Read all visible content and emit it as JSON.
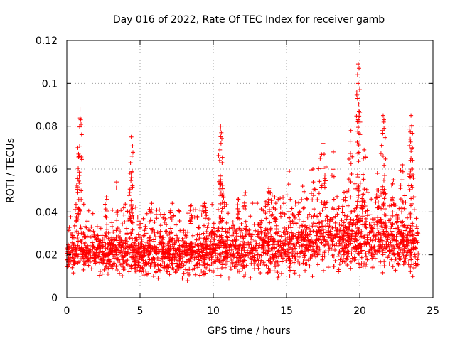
{
  "chart_data": {
    "type": "scatter",
    "title": "Day 016 of 2022, Rate Of TEC Index for receiver gamb",
    "xlabel": "GPS time / hours",
    "ylabel": "ROTI / TECUs",
    "xlim": [
      0,
      25
    ],
    "ylim": [
      0,
      0.12
    ],
    "xticks": [
      0,
      5,
      10,
      15,
      20,
      25
    ],
    "xtick_labels": [
      "0",
      "5",
      "10",
      "15",
      "20",
      "25"
    ],
    "yticks": [
      0,
      0.02,
      0.04,
      0.06,
      0.08,
      0.1,
      0.12
    ],
    "ytick_labels": [
      "0",
      "0.02",
      "0.04",
      "0.06",
      "0.08",
      "0.1",
      "0.12"
    ],
    "grid": true,
    "marker": "+",
    "marker_color": "#ff0000",
    "data_x_range": [
      0,
      24
    ],
    "bulk_range_by_hour": [
      [
        0,
        0.008,
        0.028
      ],
      [
        1,
        0.008,
        0.032
      ],
      [
        2,
        0.007,
        0.03
      ],
      [
        3,
        0.007,
        0.03
      ],
      [
        4,
        0.006,
        0.032
      ],
      [
        5,
        0.006,
        0.03
      ],
      [
        6,
        0.006,
        0.03
      ],
      [
        7,
        0.007,
        0.03
      ],
      [
        8,
        0.007,
        0.028
      ],
      [
        9,
        0.007,
        0.03
      ],
      [
        10,
        0.007,
        0.032
      ],
      [
        11,
        0.007,
        0.032
      ],
      [
        12,
        0.007,
        0.032
      ],
      [
        13,
        0.007,
        0.034
      ],
      [
        14,
        0.007,
        0.034
      ],
      [
        15,
        0.006,
        0.036
      ],
      [
        16,
        0.008,
        0.036
      ],
      [
        17,
        0.008,
        0.04
      ],
      [
        18,
        0.008,
        0.04
      ],
      [
        19,
        0.008,
        0.038
      ],
      [
        20,
        0.008,
        0.04
      ],
      [
        21,
        0.008,
        0.04
      ],
      [
        22,
        0.008,
        0.038
      ],
      [
        23,
        0.007,
        0.038
      ],
      [
        24,
        0.005,
        0.03
      ]
    ],
    "spikes": [
      {
        "x": 0.9,
        "y": 0.088
      },
      {
        "x": 0.95,
        "y": 0.083
      },
      {
        "x": 0.75,
        "y": 0.07
      },
      {
        "x": 0.8,
        "y": 0.067
      },
      {
        "x": 0.85,
        "y": 0.057
      },
      {
        "x": 0.7,
        "y": 0.042
      },
      {
        "x": 4.4,
        "y": 0.075
      },
      {
        "x": 4.45,
        "y": 0.066
      },
      {
        "x": 4.35,
        "y": 0.063
      },
      {
        "x": 4.4,
        "y": 0.056
      },
      {
        "x": 4.3,
        "y": 0.049
      },
      {
        "x": 3.4,
        "y": 0.054
      },
      {
        "x": 10.5,
        "y": 0.08
      },
      {
        "x": 10.55,
        "y": 0.077
      },
      {
        "x": 10.45,
        "y": 0.069
      },
      {
        "x": 10.6,
        "y": 0.063
      },
      {
        "x": 10.5,
        "y": 0.055
      },
      {
        "x": 10.7,
        "y": 0.047
      },
      {
        "x": 17.3,
        "y": 0.065
      },
      {
        "x": 17.5,
        "y": 0.072
      },
      {
        "x": 17.7,
        "y": 0.061
      },
      {
        "x": 18.2,
        "y": 0.068
      },
      {
        "x": 16.8,
        "y": 0.06
      },
      {
        "x": 15.2,
        "y": 0.059
      },
      {
        "x": 19.9,
        "y": 0.109
      },
      {
        "x": 19.95,
        "y": 0.107
      },
      {
        "x": 19.85,
        "y": 0.104
      },
      {
        "x": 19.9,
        "y": 0.1
      },
      {
        "x": 19.8,
        "y": 0.096
      },
      {
        "x": 19.85,
        "y": 0.093
      },
      {
        "x": 19.95,
        "y": 0.087
      },
      {
        "x": 19.9,
        "y": 0.082
      },
      {
        "x": 19.4,
        "y": 0.078
      },
      {
        "x": 19.35,
        "y": 0.073
      },
      {
        "x": 20.3,
        "y": 0.069
      },
      {
        "x": 20.25,
        "y": 0.065
      },
      {
        "x": 21.6,
        "y": 0.085
      },
      {
        "x": 21.65,
        "y": 0.083
      },
      {
        "x": 21.55,
        "y": 0.078
      },
      {
        "x": 21.6,
        "y": 0.066
      },
      {
        "x": 21.2,
        "y": 0.058
      },
      {
        "x": 23.5,
        "y": 0.085
      },
      {
        "x": 23.55,
        "y": 0.08
      },
      {
        "x": 23.45,
        "y": 0.074
      },
      {
        "x": 23.6,
        "y": 0.07
      },
      {
        "x": 23.5,
        "y": 0.065
      },
      {
        "x": 23.55,
        "y": 0.06
      },
      {
        "x": 22.9,
        "y": 0.062
      },
      {
        "x": 22.3,
        "y": 0.055
      },
      {
        "x": 13.8,
        "y": 0.051
      },
      {
        "x": 13.9,
        "y": 0.049
      },
      {
        "x": 12.2,
        "y": 0.049
      },
      {
        "x": 14.2,
        "y": 0.047
      },
      {
        "x": 2.7,
        "y": 0.047
      },
      {
        "x": 5.8,
        "y": 0.044
      },
      {
        "x": 7.2,
        "y": 0.044
      },
      {
        "x": 8.5,
        "y": 0.043
      },
      {
        "x": 9.4,
        "y": 0.044
      },
      {
        "x": 11.7,
        "y": 0.046
      },
      {
        "x": 16.1,
        "y": 0.052
      }
    ]
  }
}
